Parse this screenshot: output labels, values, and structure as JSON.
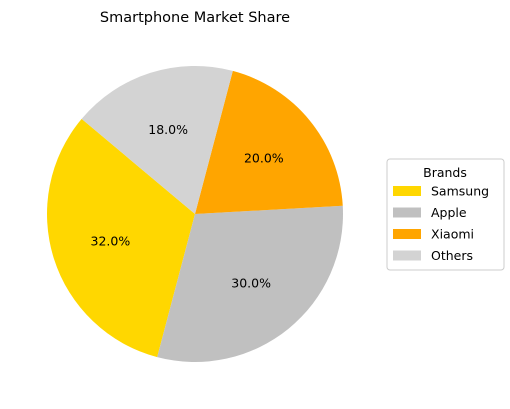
{
  "chart_data": {
    "type": "pie",
    "title": "Smartphone Market Share",
    "categories": [
      "Samsung",
      "Apple",
      "Xiaomi",
      "Others"
    ],
    "values": [
      32.0,
      30.0,
      20.0,
      18.0
    ],
    "value_labels": [
      "32.0%",
      "30.0%",
      "20.0%",
      "18.0%"
    ],
    "colors": [
      "#FFD700",
      "#C0C0C0",
      "#FFA500",
      "#D3D3D3"
    ],
    "start_angle_deg": 140,
    "direction": "counterclockwise",
    "legend": {
      "title": "Brands",
      "placement": "center-right"
    }
  }
}
